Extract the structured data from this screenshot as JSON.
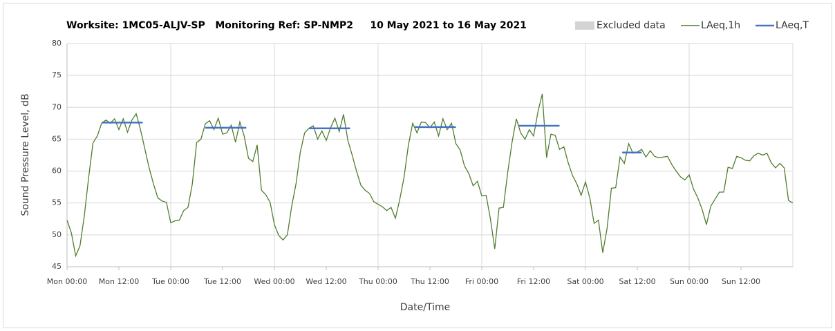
{
  "chart_data": {
    "type": "line",
    "title": "Worksite: 1MC05-ALJV-SP   Monitoring Ref: SP-NMP2     10 May 2021 to 16 May 2021",
    "x_label": "Date/Time",
    "y_label": "Sound Pressure Level, dB",
    "xlim": [
      0,
      168
    ],
    "ylim": [
      45,
      80
    ],
    "yticks": [
      45,
      50,
      55,
      60,
      65,
      70,
      75,
      80
    ],
    "xticks": [
      {
        "value": 0,
        "label": "Mon 00:00"
      },
      {
        "value": 12,
        "label": "Mon 12:00"
      },
      {
        "value": 24,
        "label": "Tue 00:00"
      },
      {
        "value": 36,
        "label": "Tue 12:00"
      },
      {
        "value": 48,
        "label": "Wed 00:00"
      },
      {
        "value": 60,
        "label": "Wed 12:00"
      },
      {
        "value": 72,
        "label": "Thu 00:00"
      },
      {
        "value": 84,
        "label": "Thu 12:00"
      },
      {
        "value": 96,
        "label": "Fri 00:00"
      },
      {
        "value": 108,
        "label": "Fri 12:00"
      },
      {
        "value": 120,
        "label": "Sat 00:00"
      },
      {
        "value": 132,
        "label": "Sat 12:00"
      },
      {
        "value": 144,
        "label": "Sun 00:00"
      },
      {
        "value": 156,
        "label": "Sun 12:00"
      }
    ],
    "xgrid": [
      24,
      48,
      72,
      96,
      120,
      144
    ],
    "grid": true,
    "legend": "top-right",
    "excluded_data": {
      "name": "Excluded data",
      "color": "#d3d3d3"
    },
    "series": [
      {
        "name": "LAeq,1h",
        "color": "#4f7d2e",
        "x": [
          0,
          1,
          2,
          3,
          4,
          5,
          6,
          7,
          8,
          9,
          10,
          11,
          12,
          13,
          14,
          15,
          16,
          17,
          18,
          19,
          20,
          21,
          22,
          23,
          24,
          25,
          26,
          27,
          28,
          29,
          30,
          31,
          32,
          33,
          34,
          35,
          36,
          37,
          38,
          39,
          40,
          41,
          42,
          43,
          44,
          45,
          46,
          47,
          48,
          49,
          50,
          51,
          52,
          53,
          54,
          55,
          56,
          57,
          58,
          59,
          60,
          61,
          62,
          63,
          64,
          65,
          66,
          67,
          68,
          69,
          70,
          71,
          72,
          73,
          74,
          75,
          76,
          77,
          78,
          79,
          80,
          81,
          82,
          83,
          84,
          85,
          86,
          87,
          88,
          89,
          90,
          91,
          92,
          93,
          94,
          95,
          96,
          97,
          98,
          99,
          100,
          101,
          102,
          103,
          104,
          105,
          106,
          107,
          108,
          109,
          110,
          111,
          112,
          113,
          114,
          115,
          116,
          117,
          118,
          119,
          120,
          121,
          122,
          123,
          124,
          125,
          126,
          127,
          128,
          129,
          130,
          131,
          132,
          133,
          134,
          135,
          136,
          137,
          138,
          139,
          140,
          141,
          142,
          143,
          144,
          145,
          146,
          147,
          148,
          149,
          150,
          151,
          152,
          153,
          154,
          155,
          156,
          157,
          158,
          159,
          160,
          161,
          162,
          163,
          164,
          165,
          166,
          167,
          168
        ],
        "values": [
          52.3,
          50.3,
          46.7,
          48.3,
          53,
          59,
          64.4,
          65.5,
          67.5,
          68,
          67.5,
          68.2,
          66.5,
          68.2,
          66.1,
          68,
          69,
          66.5,
          63.5,
          60.5,
          58,
          55.8,
          55.3,
          55.1,
          51.9,
          52.2,
          52.3,
          53.8,
          54.3,
          58,
          64.5,
          65,
          67.4,
          67.9,
          66.5,
          68.3,
          65.8,
          66,
          67.2,
          64.5,
          67.7,
          65.5,
          62,
          61.5,
          64.1,
          57,
          56.3,
          55.1,
          51.6,
          49.9,
          49.2,
          50,
          54.5,
          58,
          63,
          66,
          66.7,
          67.1,
          65,
          66.3,
          64.8,
          66.8,
          68.3,
          66.2,
          68.9,
          64.8,
          62.5,
          60,
          57.8,
          57,
          56.5,
          55.2,
          54.8,
          54.4,
          53.8,
          54.3,
          52.6,
          55.5,
          59,
          64,
          67.5,
          66,
          67.7,
          67.6,
          66.8,
          67.7,
          65.5,
          68.2,
          66.5,
          67.5,
          64.3,
          63.3,
          60.8,
          59.6,
          57.7,
          58.4,
          56.1,
          56.2,
          52.5,
          47.8,
          54.2,
          54.3,
          59.8,
          64.5,
          68.2,
          66,
          65,
          66.5,
          65.5,
          69.3,
          72.1,
          62.1,
          65.8,
          65.6,
          63.4,
          63.8,
          61.3,
          59.3,
          58,
          56.2,
          58.3,
          55.8,
          51.8,
          52.3,
          47.2,
          51,
          57.3,
          57.4,
          62.2,
          61.2,
          64.3,
          62.8,
          63,
          63.4,
          62.2,
          63.2,
          62.3,
          62.1,
          62.2,
          62.3,
          61,
          60,
          59.1,
          58.6,
          59.4,
          57.2,
          55.8,
          54,
          51.6,
          54.5,
          55.6,
          56.7,
          56.7,
          60.6,
          60.4,
          62.3,
          62.1,
          61.7,
          61.6,
          62.4,
          62.8,
          62.5,
          62.8,
          61.3,
          60.5,
          61.2,
          60.5,
          55.4,
          55
        ]
      },
      {
        "name": "LAeq,T",
        "color": "#4472c4",
        "segments": [
          {
            "start": 8,
            "end": 17.5,
            "value": 67.6
          },
          {
            "start": 32,
            "end": 41.5,
            "value": 66.8
          },
          {
            "start": 56,
            "end": 65.5,
            "value": 66.7
          },
          {
            "start": 80.5,
            "end": 90,
            "value": 66.9
          },
          {
            "start": 104.5,
            "end": 114,
            "value": 67.1
          },
          {
            "start": 128.5,
            "end": 133,
            "value": 62.9
          }
        ]
      }
    ]
  }
}
